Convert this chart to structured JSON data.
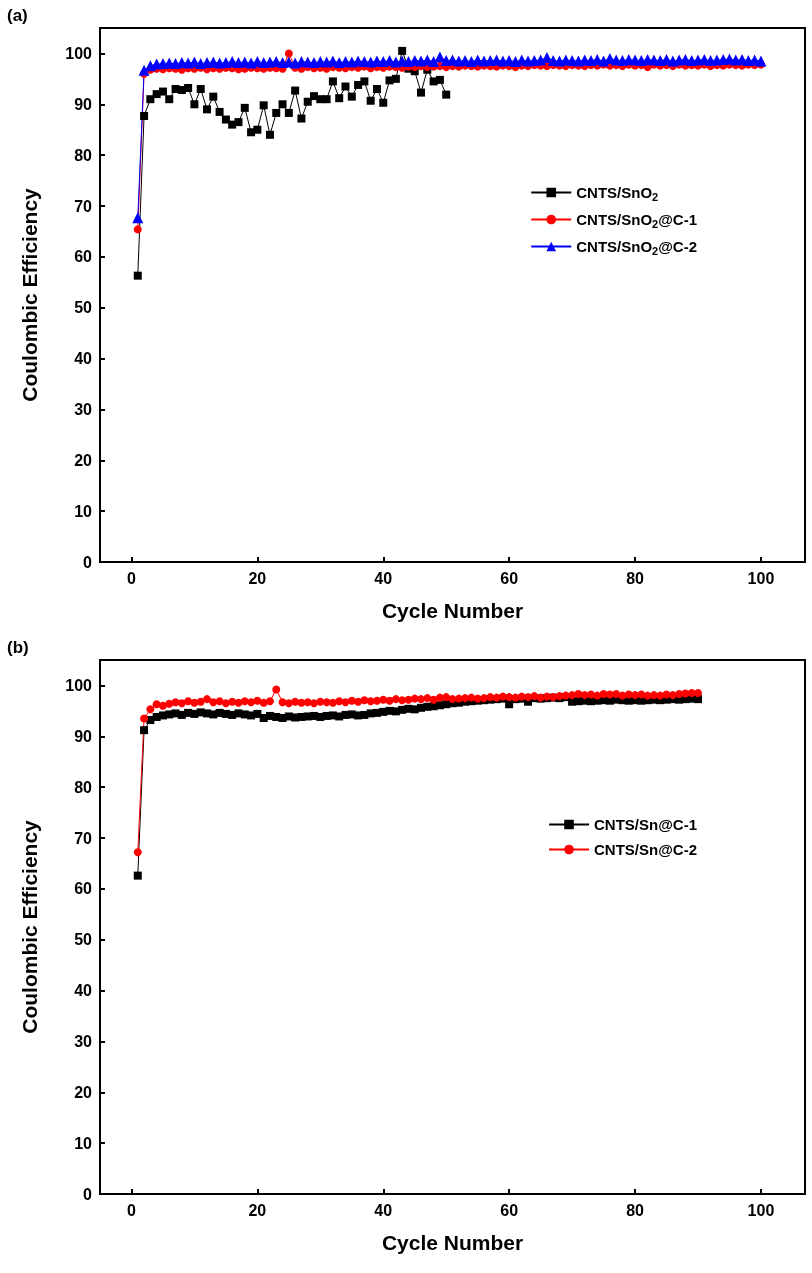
{
  "chart_data": [
    {
      "type": "line",
      "title": "(a)",
      "xlabel": "Cycle Number",
      "ylabel": "Coulombic Efficiency",
      "xlim": [
        -5,
        107
      ],
      "xticks": [
        0,
        20,
        40,
        60,
        80,
        100
      ],
      "ylim": [
        0,
        105
      ],
      "yticks": [
        0,
        10,
        20,
        30,
        40,
        50,
        60,
        70,
        80,
        90,
        100
      ],
      "grid": false,
      "legend": "right",
      "series": [
        {
          "name": "CNTS/SnO$_{2}$",
          "color": "#000000",
          "marker": "square",
          "x": [
            1,
            2,
            3,
            4,
            5,
            6,
            7,
            8,
            9,
            10,
            11,
            12,
            13,
            14,
            15,
            16,
            17,
            18,
            19,
            20,
            21,
            22,
            23,
            24,
            25,
            26,
            27,
            28,
            29,
            30,
            31,
            32,
            33,
            34,
            35,
            36,
            37,
            38,
            39,
            40,
            41,
            42,
            43,
            44,
            45,
            46,
            47,
            48,
            49,
            50
          ],
          "values": [
            56.3,
            87.7,
            91.0,
            92.0,
            92.5,
            91.0,
            93.0,
            92.8,
            93.2,
            90.0,
            93.0,
            89.0,
            91.5,
            88.5,
            87.0,
            86.0,
            86.5,
            89.3,
            84.5,
            85.0,
            89.8,
            84.0,
            88.3,
            90.0,
            88.3,
            92.7,
            87.2,
            90.5,
            91.6,
            91.0,
            91.0,
            94.5,
            91.2,
            93.5,
            91.5,
            93.8,
            94.5,
            90.7,
            93.0,
            90.3,
            94.7,
            95.0,
            100.5,
            97.0,
            96.5,
            92.3,
            96.8,
            94.5,
            94.8,
            91.9
          ]
        },
        {
          "name": "CNTS/SnO$_{2}$@C-1",
          "color": "#ff0000",
          "marker": "circle",
          "x": [
            1,
            2,
            3,
            4,
            5,
            6,
            7,
            8,
            9,
            10,
            11,
            12,
            13,
            14,
            15,
            16,
            17,
            18,
            19,
            20,
            21,
            22,
            23,
            24,
            25,
            26,
            27,
            28,
            29,
            30,
            31,
            32,
            33,
            34,
            35,
            36,
            37,
            38,
            39,
            40,
            41,
            42,
            43,
            44,
            45,
            46,
            47,
            48,
            49,
            50,
            51,
            52,
            53,
            54,
            55,
            56,
            57,
            58,
            59,
            60,
            61,
            62,
            63,
            64,
            65,
            66,
            67,
            68,
            69,
            70,
            71,
            72,
            73,
            74,
            75,
            76,
            77,
            78,
            79,
            80,
            81,
            82,
            83,
            84,
            85,
            86,
            87,
            88,
            89,
            90,
            91,
            92,
            93,
            94,
            95,
            96,
            97,
            98,
            99,
            100
          ],
          "values": [
            65.4,
            96.0,
            96.8,
            97.0,
            96.9,
            97.1,
            97.0,
            96.8,
            97.1,
            97.0,
            97.2,
            96.9,
            97.1,
            97.0,
            97.2,
            97.1,
            96.9,
            97.0,
            97.2,
            97.1,
            97.0,
            97.2,
            97.1,
            97.0,
            100.0,
            97.2,
            97.0,
            97.3,
            97.1,
            97.2,
            97.0,
            97.3,
            97.2,
            97.1,
            97.3,
            97.2,
            97.4,
            97.1,
            97.3,
            97.2,
            97.4,
            97.3,
            97.2,
            97.4,
            97.3,
            97.5,
            97.3,
            97.4,
            97.5,
            97.3,
            97.5,
            97.4,
            97.6,
            97.5,
            97.4,
            97.6,
            97.5,
            97.4,
            97.6,
            97.5,
            97.3,
            97.6,
            97.5,
            97.7,
            97.6,
            97.5,
            97.7,
            97.6,
            97.5,
            97.7,
            97.6,
            97.5,
            97.7,
            97.6,
            97.8,
            97.6,
            97.7,
            97.5,
            97.8,
            97.6,
            97.7,
            97.3,
            97.8,
            97.6,
            97.7,
            97.5,
            97.8,
            97.6,
            97.7,
            97.6,
            97.8,
            97.5,
            97.7,
            97.6,
            97.8,
            97.7,
            97.6,
            97.8,
            97.7,
            97.8
          ]
        },
        {
          "name": "CNTS/SnO$_{2}$@C-2",
          "color": "#0000ff",
          "marker": "triangle",
          "x": [
            1,
            2,
            3,
            4,
            5,
            6,
            7,
            8,
            9,
            10,
            11,
            12,
            13,
            14,
            15,
            16,
            17,
            18,
            19,
            20,
            21,
            22,
            23,
            24,
            25,
            26,
            27,
            28,
            29,
            30,
            31,
            32,
            33,
            34,
            35,
            36,
            37,
            38,
            39,
            40,
            41,
            42,
            43,
            44,
            45,
            46,
            47,
            48,
            49,
            50,
            51,
            52,
            53,
            54,
            55,
            56,
            57,
            58,
            59,
            60,
            61,
            62,
            63,
            64,
            65,
            66,
            67,
            68,
            69,
            70,
            71,
            72,
            73,
            74,
            75,
            76,
            77,
            78,
            79,
            80,
            81,
            82,
            83,
            84,
            85,
            86,
            87,
            88,
            89,
            90,
            91,
            92,
            93,
            94,
            95,
            96,
            97,
            98,
            99,
            100
          ],
          "values": [
            67.7,
            96.7,
            97.6,
            97.9,
            98.0,
            98.1,
            98.0,
            98.2,
            98.1,
            98.3,
            98.0,
            98.2,
            98.3,
            98.1,
            98.2,
            98.4,
            98.2,
            98.3,
            98.1,
            98.4,
            98.2,
            98.3,
            98.4,
            98.2,
            98.3,
            98.1,
            98.4,
            98.3,
            98.2,
            98.4,
            98.3,
            98.5,
            98.2,
            98.4,
            98.3,
            98.5,
            98.4,
            98.3,
            98.5,
            98.4,
            98.6,
            98.3,
            98.5,
            98.4,
            98.6,
            98.5,
            98.7,
            98.4,
            99.3,
            98.6,
            98.7,
            98.5,
            98.6,
            98.4,
            98.7,
            98.5,
            98.6,
            98.7,
            98.5,
            98.6,
            98.4,
            98.7,
            98.5,
            98.6,
            98.7,
            99.2,
            98.6,
            98.5,
            98.7,
            98.6,
            98.5,
            98.7,
            98.6,
            98.8,
            98.5,
            99.0,
            98.7,
            98.6,
            98.8,
            98.7,
            98.6,
            98.8,
            98.7,
            98.6,
            98.8,
            98.5,
            98.7,
            98.8,
            98.6,
            98.7,
            98.8,
            98.6,
            98.7,
            98.8,
            98.9,
            98.7,
            98.8,
            98.6,
            98.7,
            98.5
          ]
        }
      ]
    },
    {
      "type": "line",
      "title": "(b)",
      "xlabel": "Cycle Number",
      "ylabel": "Coulombic Efficiency",
      "xlim": [
        -5,
        107
      ],
      "xticks": [
        0,
        20,
        40,
        60,
        80,
        100
      ],
      "ylim": [
        0,
        105
      ],
      "yticks": [
        0,
        10,
        20,
        30,
        40,
        50,
        60,
        70,
        80,
        90,
        100
      ],
      "grid": false,
      "legend": "right",
      "series": [
        {
          "name": "CNTS/Sn@C-1",
          "color": "#000000",
          "marker": "square",
          "x": [
            1,
            2,
            3,
            4,
            5,
            6,
            7,
            8,
            9,
            10,
            11,
            12,
            13,
            14,
            15,
            16,
            17,
            18,
            19,
            20,
            21,
            22,
            23,
            24,
            25,
            26,
            27,
            28,
            29,
            30,
            31,
            32,
            33,
            34,
            35,
            36,
            37,
            38,
            39,
            40,
            41,
            42,
            43,
            44,
            45,
            46,
            47,
            48,
            49,
            50,
            51,
            52,
            53,
            54,
            55,
            56,
            57,
            58,
            59,
            60,
            61,
            62,
            63,
            64,
            65,
            66,
            67,
            68,
            69,
            70,
            71,
            72,
            73,
            74,
            75,
            76,
            77,
            78,
            79,
            80,
            81,
            82,
            83,
            84,
            85,
            86,
            87,
            88,
            89,
            90
          ],
          "values": [
            62.6,
            91.2,
            93.2,
            93.8,
            94.1,
            94.3,
            94.5,
            94.2,
            94.6,
            94.4,
            94.7,
            94.5,
            94.3,
            94.6,
            94.4,
            94.2,
            94.5,
            94.3,
            94.1,
            94.4,
            93.6,
            94.0,
            93.8,
            93.6,
            93.9,
            93.7,
            93.8,
            93.9,
            94.0,
            93.8,
            94.0,
            94.1,
            93.9,
            94.2,
            94.3,
            94.1,
            94.2,
            94.5,
            94.6,
            94.8,
            95.0,
            94.9,
            95.2,
            95.4,
            95.3,
            95.6,
            95.8,
            95.9,
            96.1,
            96.3,
            96.5,
            96.6,
            96.8,
            96.9,
            97.0,
            97.1,
            97.2,
            97.3,
            97.4,
            96.3,
            97.3,
            97.4,
            96.8,
            97.5,
            97.4,
            97.5,
            97.6,
            97.5,
            97.7,
            96.8,
            96.9,
            97.0,
            96.9,
            97.0,
            97.1,
            97.0,
            97.2,
            97.1,
            97.0,
            97.1,
            97.0,
            97.1,
            97.2,
            97.1,
            97.2,
            97.3,
            97.2,
            97.3,
            97.4,
            97.3
          ]
        },
        {
          "name": "CNTS/Sn@C-2",
          "color": "#ff0000",
          "marker": "circle",
          "x": [
            1,
            2,
            3,
            4,
            5,
            6,
            7,
            8,
            9,
            10,
            11,
            12,
            13,
            14,
            15,
            16,
            17,
            18,
            19,
            20,
            21,
            22,
            23,
            24,
            25,
            26,
            27,
            28,
            29,
            30,
            31,
            32,
            33,
            34,
            35,
            36,
            37,
            38,
            39,
            40,
            41,
            42,
            43,
            44,
            45,
            46,
            47,
            48,
            49,
            50,
            51,
            52,
            53,
            54,
            55,
            56,
            57,
            58,
            59,
            60,
            61,
            62,
            63,
            64,
            65,
            66,
            67,
            68,
            69,
            70,
            71,
            72,
            73,
            74,
            75,
            76,
            77,
            78,
            79,
            80,
            81,
            82,
            83,
            84,
            85,
            86,
            87,
            88,
            89,
            90
          ],
          "values": [
            67.2,
            93.5,
            95.3,
            96.3,
            96.0,
            96.4,
            96.7,
            96.5,
            96.9,
            96.6,
            96.8,
            97.3,
            96.7,
            96.9,
            96.5,
            96.8,
            96.6,
            96.9,
            96.7,
            97.0,
            96.6,
            96.9,
            99.2,
            96.7,
            96.5,
            96.8,
            96.6,
            96.7,
            96.5,
            96.8,
            96.7,
            96.6,
            96.9,
            96.7,
            97.0,
            96.8,
            97.1,
            96.9,
            97.0,
            97.2,
            97.0,
            97.3,
            97.1,
            97.2,
            97.4,
            97.3,
            97.5,
            97.2,
            97.6,
            97.7,
            97.3,
            97.4,
            97.5,
            97.6,
            97.4,
            97.5,
            97.7,
            97.6,
            97.8,
            97.7,
            97.6,
            97.8,
            97.7,
            97.9,
            97.6,
            97.8,
            97.7,
            97.9,
            98.0,
            98.1,
            98.3,
            98.1,
            98.2,
            98.0,
            98.3,
            98.2,
            98.3,
            98.0,
            98.2,
            98.1,
            98.2,
            98.0,
            98.1,
            98.0,
            98.2,
            98.1,
            98.3,
            98.4,
            98.5,
            98.5
          ]
        }
      ]
    }
  ]
}
